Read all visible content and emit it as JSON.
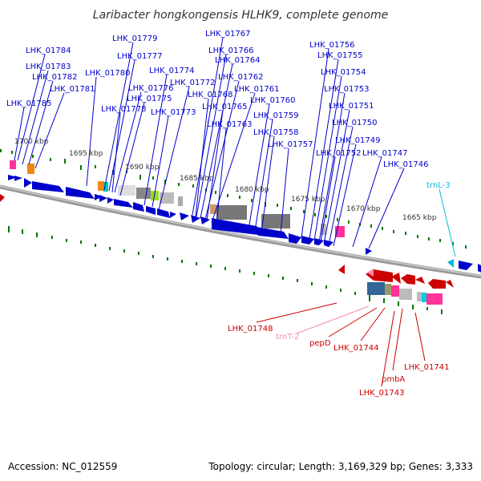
{
  "title": "Laribacter hongkongensis HLHK9, complete genome",
  "accession": "Accession: NC_012559",
  "topology": "Topology: circular; Length: 3,169,329 bp; Genes: 3,333",
  "colors": {
    "forward": "#0000cc",
    "reverse": "#cc0000",
    "trna_forward": "#00bbdd",
    "trna_reverse": "#ff88aa",
    "axis": "#888888",
    "gc": "#007700"
  },
  "kbp_ticks": [
    "1700 kbp",
    "1695 kbp",
    "1690 kbp",
    "1685 kbp",
    "1680 kbp",
    "1675 kbp",
    "1670 kbp",
    "1665 kbp"
  ],
  "forward_genes": [
    "LHK_01784",
    "LHK_01783",
    "LHK_01782",
    "LHK_01781",
    "LHK_01785",
    "LHK_01780",
    "LHK_01779",
    "LHK_01777",
    "LHK_01776",
    "LHK_01775",
    "LHK_01778",
    "LHK_01774",
    "LHK_01772",
    "LHK_01773",
    "LHK_01767",
    "LHK_01766",
    "LHK_01764",
    "LHK_01762",
    "LHK_01768",
    "LHK_01761",
    "LHK_01765",
    "LHK_01760",
    "LHK_01763",
    "LHK_01759",
    "LHK_01758",
    "LHK_01757",
    "LHK_01756",
    "LHK_01755",
    "LHK_01754",
    "LHK_01753",
    "LHK_01751",
    "LHK_01750",
    "LHK_01749",
    "LHK_01752",
    "LHK_01747",
    "LHK_01746"
  ],
  "trna_forward_label": "trnL-3",
  "reverse_genes": [
    "LHK_01748",
    "trnT-2",
    "pepD",
    "LHK_01744",
    "pmbA",
    "LHK_01743",
    "LHK_01741"
  ]
}
